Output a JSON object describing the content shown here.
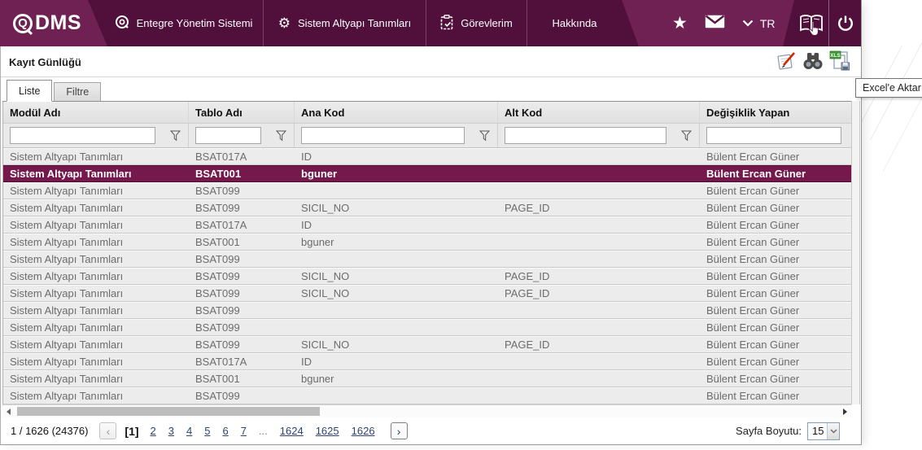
{
  "navbar": {
    "logo": {
      "q": "Q",
      "text": "DMS"
    },
    "menu": [
      {
        "label": "Entegre Yönetim Sistemi"
      },
      {
        "label": "Sistem Altyapı Tanımları"
      },
      {
        "label": "Görevlerim"
      },
      {
        "label": "Hakkında"
      }
    ],
    "glyphs": {
      "gear": "⚙",
      "star": "★"
    },
    "language": "TR"
  },
  "titlebar": {
    "title": "Kayıt Günlüğü",
    "tooltip": "Excel'e Aktar",
    "excel_badge": "XLS"
  },
  "tabs": [
    {
      "label": "Liste",
      "active": true
    },
    {
      "label": "Filtre",
      "active": false
    }
  ],
  "table": {
    "columns": [
      {
        "label": "Modül Adı",
        "filter_funnel": true
      },
      {
        "label": "Tablo Adı",
        "filter_funnel": true
      },
      {
        "label": "Ana Kod",
        "filter_funnel": true
      },
      {
        "label": "Alt Kod",
        "filter_funnel": true
      },
      {
        "label": "Değişiklik Yapan",
        "filter_funnel": false
      }
    ],
    "filter_values": [
      "",
      "",
      "",
      "",
      ""
    ],
    "rows": [
      {
        "module": "Sistem Altyapı Tanımları",
        "table_name": "BSAT017A",
        "main_code": "ID",
        "sub_code": "",
        "changed_by": "Bülent Ercan Güner",
        "selected": false
      },
      {
        "module": "Sistem Altyapı Tanımları",
        "table_name": "BSAT001",
        "main_code": "bguner",
        "sub_code": "",
        "changed_by": "Bülent Ercan Güner",
        "selected": true
      },
      {
        "module": "Sistem Altyapı Tanımları",
        "table_name": "BSAT099",
        "main_code": "",
        "sub_code": "",
        "changed_by": "Bülent Ercan Güner",
        "selected": false
      },
      {
        "module": "Sistem Altyapı Tanımları",
        "table_name": "BSAT099",
        "main_code": "SICIL_NO",
        "sub_code": "PAGE_ID",
        "changed_by": "Bülent Ercan Güner",
        "selected": false
      },
      {
        "module": "Sistem Altyapı Tanımları",
        "table_name": "BSAT017A",
        "main_code": "ID",
        "sub_code": "",
        "changed_by": "Bülent Ercan Güner",
        "selected": false
      },
      {
        "module": "Sistem Altyapı Tanımları",
        "table_name": "BSAT001",
        "main_code": "bguner",
        "sub_code": "",
        "changed_by": "Bülent Ercan Güner",
        "selected": false
      },
      {
        "module": "Sistem Altyapı Tanımları",
        "table_name": "BSAT099",
        "main_code": "",
        "sub_code": "",
        "changed_by": "Bülent Ercan Güner",
        "selected": false
      },
      {
        "module": "Sistem Altyapı Tanımları",
        "table_name": "BSAT099",
        "main_code": "SICIL_NO",
        "sub_code": "PAGE_ID",
        "changed_by": "Bülent Ercan Güner",
        "selected": false
      },
      {
        "module": "Sistem Altyapı Tanımları",
        "table_name": "BSAT099",
        "main_code": "SICIL_NO",
        "sub_code": "PAGE_ID",
        "changed_by": "Bülent Ercan Güner",
        "selected": false
      },
      {
        "module": "Sistem Altyapı Tanımları",
        "table_name": "BSAT099",
        "main_code": "",
        "sub_code": "",
        "changed_by": "Bülent Ercan Güner",
        "selected": false
      },
      {
        "module": "Sistem Altyapı Tanımları",
        "table_name": "BSAT099",
        "main_code": "",
        "sub_code": "",
        "changed_by": "Bülent Ercan Güner",
        "selected": false
      },
      {
        "module": "Sistem Altyapı Tanımları",
        "table_name": "BSAT099",
        "main_code": "SICIL_NO",
        "sub_code": "PAGE_ID",
        "changed_by": "Bülent Ercan Güner",
        "selected": false
      },
      {
        "module": "Sistem Altyapı Tanımları",
        "table_name": "BSAT017A",
        "main_code": "ID",
        "sub_code": "",
        "changed_by": "Bülent Ercan Güner",
        "selected": false
      },
      {
        "module": "Sistem Altyapı Tanımları",
        "table_name": "BSAT001",
        "main_code": "bguner",
        "sub_code": "",
        "changed_by": "Bülent Ercan Güner",
        "selected": false
      },
      {
        "module": "Sistem Altyapı Tanımları",
        "table_name": "BSAT099",
        "main_code": "",
        "sub_code": "",
        "changed_by": "Bülent Ercan Güner",
        "selected": false
      }
    ]
  },
  "pagination": {
    "summary": "1 / 1626 (24376)",
    "prev": "‹",
    "current": "[1]",
    "pages": [
      "2",
      "3",
      "4",
      "5",
      "6",
      "7"
    ],
    "ellipsis": "...",
    "last_pages": [
      "1624",
      "1625",
      "1626"
    ],
    "next": "›",
    "page_size_label": "Sayfa Boyutu:",
    "page_size": "15"
  }
}
